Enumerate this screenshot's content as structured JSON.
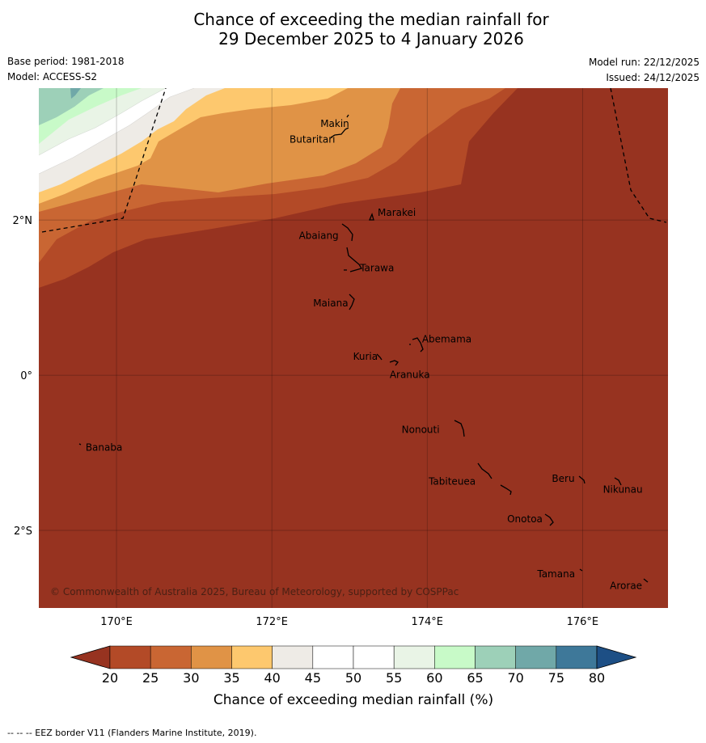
{
  "title": {
    "line1": "Chance of exceeding the median rainfall for",
    "line2": "29 December 2025 to 4 January 2026"
  },
  "meta": {
    "base_period": "Base period: 1981-2018",
    "model": "Model: ACCESS-S2",
    "model_run": "Model run: 22/12/2025",
    "issued": "Issued: 24/12/2025"
  },
  "map": {
    "extent": {
      "lon_min": 169.0,
      "lon_max": 177.1,
      "lat_min": -3.0,
      "lat_max": 3.7
    },
    "lon_ticks": [
      {
        "value": 170,
        "label": "170°E"
      },
      {
        "value": 172,
        "label": "172°E"
      },
      {
        "value": 174,
        "label": "174°E"
      },
      {
        "value": 176,
        "label": "176°E"
      }
    ],
    "lat_ticks": [
      {
        "value": 2,
        "label": "2°N"
      },
      {
        "value": 0,
        "label": "0°"
      },
      {
        "value": -2,
        "label": "2°S"
      }
    ],
    "places": [
      {
        "name": "Makin",
        "lon": 173.0,
        "lat": 3.25
      },
      {
        "name": "Butaritari",
        "lon": 172.8,
        "lat": 3.1
      },
      {
        "name": "Marakei",
        "lon": 173.3,
        "lat": 2.0
      },
      {
        "name": "Abaiang",
        "lon": 172.9,
        "lat": 1.85
      },
      {
        "name": "Tarawa",
        "lon": 173.0,
        "lat": 1.4
      },
      {
        "name": "Maiana",
        "lon": 173.0,
        "lat": 0.95
      },
      {
        "name": "Abemama",
        "lon": 173.85,
        "lat": 0.4
      },
      {
        "name": "Kuria",
        "lon": 173.4,
        "lat": 0.22
      },
      {
        "name": "Aranuka",
        "lon": 173.6,
        "lat": 0.15
      },
      {
        "name": "Nonouti",
        "lon": 174.4,
        "lat": -0.65
      },
      {
        "name": "Banaba",
        "lon": 169.55,
        "lat": -0.87
      },
      {
        "name": "Beru",
        "lon": 175.98,
        "lat": -1.32
      },
      {
        "name": "Nikunau",
        "lon": 176.45,
        "lat": -1.36
      },
      {
        "name": "Tabiteuea",
        "lon": 174.8,
        "lat": -1.35
      },
      {
        "name": "Onotoa",
        "lon": 175.55,
        "lat": -1.82
      },
      {
        "name": "Tamana",
        "lon": 176.0,
        "lat": -2.5
      },
      {
        "name": "Arorae",
        "lon": 176.8,
        "lat": -2.65
      }
    ],
    "copyright": "© Commonwealth of Australia 2025, Bureau of Meteorology, supported by COSPPac"
  },
  "colorbar": {
    "ticks": [
      "20",
      "25",
      "30",
      "35",
      "40",
      "45",
      "50",
      "55",
      "60",
      "65",
      "70",
      "75",
      "80"
    ],
    "colors": [
      "#973320",
      "#b34a27",
      "#c96633",
      "#e09346",
      "#fdc86e",
      "#eeebe6",
      "#ffffff",
      "#ffffff",
      "#e9f4e6",
      "#c8fac8",
      "#9dd0b8",
      "#70a8a8",
      "#3e7899",
      "#1d4f85"
    ],
    "label": "Chance of exceeding median rainfall (%)"
  },
  "legend_colors": {
    "below_20": "#973320",
    "c20_25": "#b34a27",
    "c25_30": "#c96633",
    "c30_35": "#e09346",
    "c35_40": "#fdc86e",
    "c40_45": "#eeebe6",
    "c45_55": "#ffffff",
    "c55_60": "#e9f4e6",
    "c60_65": "#c8fac8",
    "c65_70": "#9dd0b8",
    "c70_75": "#70a8a8"
  },
  "footer": "--  --  -- EEZ border V11 (Flanders Marine Institute, 2019)."
}
